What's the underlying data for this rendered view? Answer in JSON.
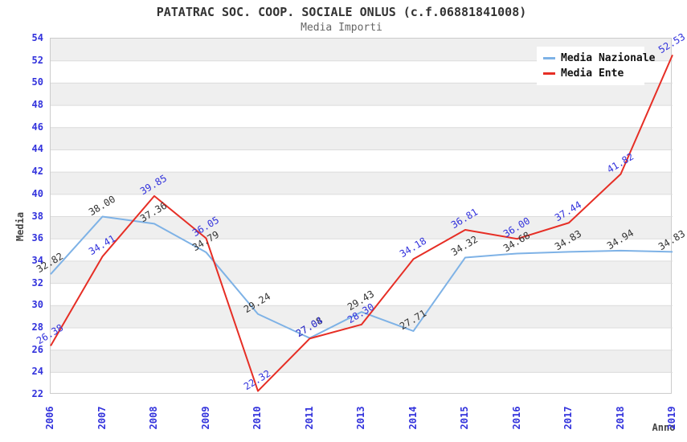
{
  "header": {
    "title": "PATATRAC SOC. COOP. SOCIALE ONLUS (c.f.06881841008)",
    "subtitle": "Media Importi"
  },
  "legend": {
    "items": [
      {
        "label": "Media Nazionale",
        "color": "#7eb2e6"
      },
      {
        "label": "Media Ente",
        "color": "#e62e25"
      }
    ]
  },
  "chart_data": {
    "type": "line",
    "title": "PATATRAC SOC. COOP. SOCIALE ONLUS (c.f.06881841008)",
    "subtitle": "Media Importi",
    "xlabel": "Anno",
    "ylabel": "Media",
    "x": [
      "2006",
      "2007",
      "2008",
      "2009",
      "2010",
      "2011",
      "2013",
      "2014",
      "2015",
      "2016",
      "2017",
      "2018",
      "2019"
    ],
    "ylim": [
      22,
      54
    ],
    "yticks": [
      22,
      24,
      26,
      28,
      30,
      32,
      34,
      36,
      38,
      40,
      42,
      44,
      46,
      48,
      50,
      52,
      54
    ],
    "grid": "alternating gray/white horizontal bands every 2 units",
    "legend_position": "top-right",
    "series": [
      {
        "name": "Media Nazionale",
        "color": "#7eb2e6",
        "label_color": "#333333",
        "values": [
          32.82,
          38.0,
          37.36,
          34.79,
          29.24,
          27.08,
          29.43,
          27.71,
          34.32,
          34.68,
          34.83,
          34.94,
          34.83
        ],
        "labels": [
          "32.82",
          "38.00",
          "37.36",
          "34.79",
          "29.24",
          "27.08",
          "29.43",
          "27.71",
          "34.32",
          "34.68",
          "34.83",
          "34.94",
          "34.83"
        ]
      },
      {
        "name": "Media Ente",
        "color": "#e62e25",
        "label_color": "#3232dc",
        "values": [
          26.38,
          34.41,
          39.85,
          36.05,
          22.32,
          27.04,
          28.3,
          34.18,
          36.81,
          36.0,
          37.44,
          41.82,
          52.53
        ],
        "labels": [
          "26.38",
          "34.41",
          "39.85",
          "36.05",
          "22.32",
          "27.04",
          "28.30",
          "34.18",
          "36.81",
          "36.00",
          "37.44",
          "41.82",
          "52.53"
        ]
      }
    ]
  },
  "colors": {
    "tick_label": "#3232dc",
    "band_gray": "#efefef",
    "gridline": "#dcdcdc",
    "title_text": "#333333",
    "subtitle_text": "#666666",
    "axis_title_text": "#444444"
  }
}
